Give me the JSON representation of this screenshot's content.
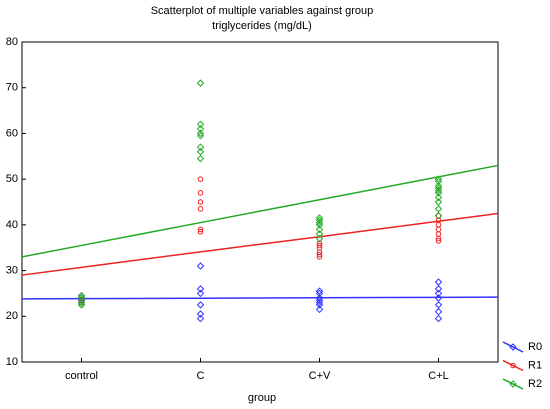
{
  "chart_data": {
    "type": "scatter",
    "title": "Scatterplot of multiple variables against group",
    "subtitle": "triglycerides (mg/dL)",
    "xlabel": "group",
    "categories": [
      "control",
      "C",
      "C+V",
      "C+L"
    ],
    "ylim": [
      10,
      80
    ],
    "yticks": [
      10,
      20,
      30,
      40,
      50,
      60,
      70,
      80
    ],
    "legend": "bottom-right",
    "series": [
      {
        "name": "R0",
        "color": "#3333ff",
        "marker": "diamond",
        "x": [
          "control",
          "control",
          "control",
          "control",
          "C",
          "C",
          "C",
          "C",
          "C",
          "C",
          "C+V",
          "C+V",
          "C+V",
          "C+V",
          "C+V",
          "C+V",
          "C+V",
          "C+L",
          "C+L",
          "C+L",
          "C+L",
          "C+L",
          "C+L",
          "C+L"
        ],
        "values": [
          23,
          23.5,
          24,
          24.5,
          31,
          26,
          25,
          22.5,
          20.5,
          19.5,
          25.5,
          25,
          24,
          23.5,
          23,
          22.5,
          21.5,
          27.5,
          26,
          25,
          24,
          22.5,
          21,
          19.5
        ],
        "trend": [
          23.85,
          23.95,
          24.05,
          24.15
        ]
      },
      {
        "name": "R1",
        "color": "#ee2222",
        "marker": "circle",
        "x": [
          "control",
          "control",
          "control",
          "control",
          "C",
          "C",
          "C",
          "C",
          "C",
          "C",
          "C+V",
          "C+V",
          "C+V",
          "C+V",
          "C+V",
          "C+V",
          "C+L",
          "C+L",
          "C+L",
          "C+L",
          "C+L",
          "C+L",
          "C+L"
        ],
        "values": [
          22.5,
          23,
          23.5,
          24,
          50,
          47,
          45,
          43.5,
          39,
          38.5,
          36,
          35.5,
          35,
          34,
          33.5,
          33,
          42,
          41,
          40,
          39,
          38,
          37,
          36.5
        ],
        "trend": [
          30.7,
          34.1,
          37.4,
          40.8
        ]
      },
      {
        "name": "R2",
        "color": "#22aa22",
        "marker": "diamond",
        "x": [
          "control",
          "control",
          "control",
          "control",
          "C",
          "C",
          "C",
          "C",
          "C",
          "C",
          "C",
          "C",
          "C+V",
          "C+V",
          "C+V",
          "C+V",
          "C+V",
          "C+V",
          "C+V",
          "C+L",
          "C+L",
          "C+L",
          "C+L",
          "C+L",
          "C+L",
          "C+L",
          "C+L",
          "C+L",
          "C+L"
        ],
        "values": [
          22.5,
          23,
          24,
          24.5,
          71,
          62,
          61,
          60,
          59.5,
          57,
          56,
          54.5,
          41.5,
          41,
          40.5,
          40,
          39,
          38,
          37,
          50,
          49.5,
          48.5,
          48,
          47.5,
          47,
          46,
          45,
          43.5,
          42
        ],
        "trend": [
          35.5,
          40.5,
          45.5,
          50.5
        ]
      }
    ]
  }
}
